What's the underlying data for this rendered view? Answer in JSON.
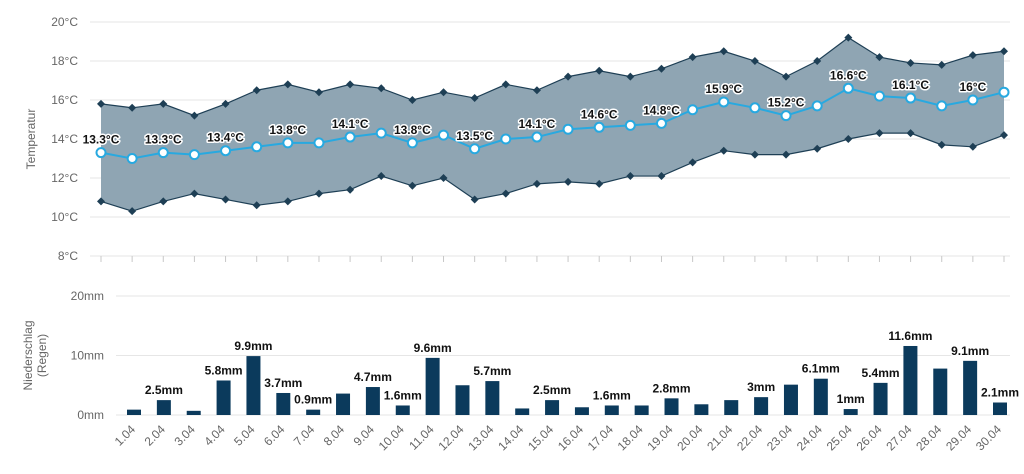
{
  "colors": {
    "band_fill": "#8fa5b3",
    "band_edge": "#1e3f55",
    "mean_line": "#28a9e0",
    "bar": "#0b3a5c",
    "grid": "#e6e6e6",
    "axis_text": "#666666"
  },
  "chart_data": [
    {
      "type": "area",
      "ylabel": "Temperatur",
      "ylim": [
        8,
        20
      ],
      "yticks": [
        "8°C",
        "10°C",
        "12°C",
        "14°C",
        "16°C",
        "18°C",
        "20°C"
      ],
      "yticks_values": [
        8,
        10,
        12,
        14,
        16,
        18,
        20
      ],
      "grid": true,
      "categories": [
        "1.04",
        "2.04",
        "3.04",
        "4.04",
        "5.04",
        "6.04",
        "7.04",
        "8.04",
        "9.04",
        "10.04",
        "11.04",
        "12.04",
        "13.04",
        "14.04",
        "15.04",
        "16.04",
        "17.04",
        "18.04",
        "19.04",
        "20.04",
        "21.04",
        "22.04",
        "23.04",
        "24.04",
        "25.04",
        "26.04",
        "27.04",
        "28.04",
        "29.04",
        "30.04"
      ],
      "series": [
        {
          "values": [
            15.8,
            15.6,
            15.8,
            15.2,
            15.8,
            16.5,
            16.8,
            16.4,
            16.8,
            16.6,
            16.0,
            16.4,
            16.1,
            16.8,
            16.5,
            17.2,
            17.5,
            17.2,
            17.6,
            18.2,
            18.5,
            18.0,
            17.2,
            18.0,
            19.2,
            18.2,
            17.9,
            17.8,
            18.3,
            18.5
          ]
        },
        {
          "values": [
            13.3,
            13.0,
            13.3,
            13.2,
            13.4,
            13.6,
            13.8,
            13.8,
            14.1,
            14.3,
            13.8,
            14.2,
            13.5,
            14.0,
            14.1,
            14.5,
            14.6,
            14.7,
            14.8,
            15.5,
            15.9,
            15.6,
            15.2,
            15.7,
            16.6,
            16.2,
            16.1,
            15.7,
            16.0,
            16.4
          ]
        },
        {
          "values": [
            10.8,
            10.3,
            10.8,
            11.2,
            10.9,
            10.6,
            10.8,
            11.2,
            11.4,
            12.1,
            11.6,
            12.0,
            10.9,
            11.2,
            11.7,
            11.8,
            11.7,
            12.1,
            12.1,
            12.8,
            13.4,
            13.2,
            13.2,
            13.5,
            14.0,
            14.3,
            14.3,
            13.7,
            13.6,
            14.2
          ]
        }
      ],
      "data_labels": [
        {
          "index": 0,
          "text": "13.3°C"
        },
        {
          "index": 2,
          "text": "13.3°C"
        },
        {
          "index": 4,
          "text": "13.4°C"
        },
        {
          "index": 6,
          "text": "13.8°C"
        },
        {
          "index": 8,
          "text": "14.1°C"
        },
        {
          "index": 10,
          "text": "13.8°C"
        },
        {
          "index": 12,
          "text": "13.5°C"
        },
        {
          "index": 14,
          "text": "14.1°C"
        },
        {
          "index": 16,
          "text": "14.6°C"
        },
        {
          "index": 18,
          "text": "14.8°C"
        },
        {
          "index": 20,
          "text": "15.9°C"
        },
        {
          "index": 22,
          "text": "15.2°C"
        },
        {
          "index": 24,
          "text": "16.6°C"
        },
        {
          "index": 26,
          "text": "16.1°C"
        },
        {
          "index": 28,
          "text": "16°C"
        }
      ]
    },
    {
      "type": "bar",
      "ylabel": "Niederschlag (Regen)",
      "ylabel_lines": [
        "Niederschlag",
        "(Regen)"
      ],
      "ylim": [
        0,
        20
      ],
      "yticks": [
        "0mm",
        "10mm",
        "20mm"
      ],
      "yticks_values": [
        0,
        10,
        20
      ],
      "grid": true,
      "categories": [
        "1.04",
        "2.04",
        "3.04",
        "4.04",
        "5.04",
        "6.04",
        "7.04",
        "8.04",
        "9.04",
        "10.04",
        "11.04",
        "12.04",
        "13.04",
        "14.04",
        "15.04",
        "16.04",
        "17.04",
        "18.04",
        "19.04",
        "20.04",
        "21.04",
        "22.04",
        "23.04",
        "24.04",
        "25.04",
        "26.04",
        "27.04",
        "28.04",
        "29.04",
        "30.04"
      ],
      "values": [
        0.9,
        2.5,
        0.7,
        5.8,
        9.9,
        3.7,
        0.9,
        3.6,
        4.7,
        1.6,
        9.6,
        5.0,
        5.7,
        1.1,
        2.5,
        1.3,
        1.6,
        1.6,
        2.8,
        1.8,
        2.5,
        3.0,
        5.1,
        6.1,
        1.0,
        5.4,
        11.6,
        7.8,
        9.1,
        2.1
      ],
      "data_labels": [
        {
          "index": 1,
          "text": "2.5mm"
        },
        {
          "index": 3,
          "text": "5.8mm"
        },
        {
          "index": 4,
          "text": "9.9mm"
        },
        {
          "index": 5,
          "text": "3.7mm"
        },
        {
          "index": 6,
          "text": "0.9mm"
        },
        {
          "index": 8,
          "text": "4.7mm"
        },
        {
          "index": 9,
          "text": "1.6mm"
        },
        {
          "index": 10,
          "text": "9.6mm"
        },
        {
          "index": 12,
          "text": "5.7mm"
        },
        {
          "index": 14,
          "text": "2.5mm"
        },
        {
          "index": 16,
          "text": "1.6mm"
        },
        {
          "index": 18,
          "text": "2.8mm"
        },
        {
          "index": 21,
          "text": "3mm"
        },
        {
          "index": 23,
          "text": "6.1mm"
        },
        {
          "index": 24,
          "text": "1mm"
        },
        {
          "index": 25,
          "text": "5.4mm"
        },
        {
          "index": 26,
          "text": "11.6mm"
        },
        {
          "index": 28,
          "text": "9.1mm"
        },
        {
          "index": 29,
          "text": "2.1mm"
        }
      ]
    }
  ]
}
